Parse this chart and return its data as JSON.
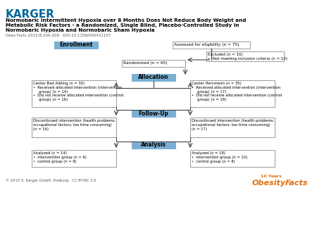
{
  "title_line1": "Normobaric Intermittent Hypoxia over 8 Months Does Not Reduce Body Weight and",
  "title_line2": "Metabolic Risk Factors - a Randomized, Single Blind, Placebo-Controlled Study in",
  "title_line3": "Normobaric Hypoxia and Normobaric Sham Hypoxia",
  "doi_text": "Obes Facts 2015;8:200-209 · DOI:10.1159/000431157",
  "karger_color": "#006699",
  "header_bg": "#7bafd4",
  "box_bg": "#d6e4f0",
  "box_border": "#7bafd4",
  "white_bg": "#ffffff",
  "white_border": "#999999",
  "copyright": "© 2015 S. Karger GmbH, Freiburg · CC BY-NC 3.0",
  "enrollment_label": "Enrollment",
  "assessed_text": "Assessed for eligibility (n = 75)",
  "excluded_text": "Excluded (n = 10)\n•  Not meeting inclusion criteria (n = 10)",
  "randomized_text": "Randomized (n = 65)",
  "allocation_label": "Allocation",
  "left_alloc_text": "Center Bad Aibling (n = 30)\n•  Received allocated intervention (intervention\n     group) (n = 14)\n•  Did not receive allocated intervention (control\n     group) (n = 16)",
  "right_alloc_text": "Center Herrsheim (n = 35)\n•  Received allocated intervention (intervention\n     group) (n = 17)\n•  Did not receive allocated intervention (control\n     group) (n = 18)",
  "followup_label": "Follow-Up",
  "left_followup_text": "Discontinued intervention (health problems,\noccupational factors, too time consuming)\n(n = 16)",
  "right_followup_text": "Discontinued intervention (health problems,\noccupational factors, too time consuming)\n(n = 17)",
  "analysis_label": "Analysis",
  "left_analysis_text": "Analyzed (n = 14)\n•  intervention group (n = 6)\n•  control group (n = 8)",
  "right_analysis_text": "Analyzed (n = 18)\n•  intervention group (n = 10)\n•  control group (n = 8)"
}
